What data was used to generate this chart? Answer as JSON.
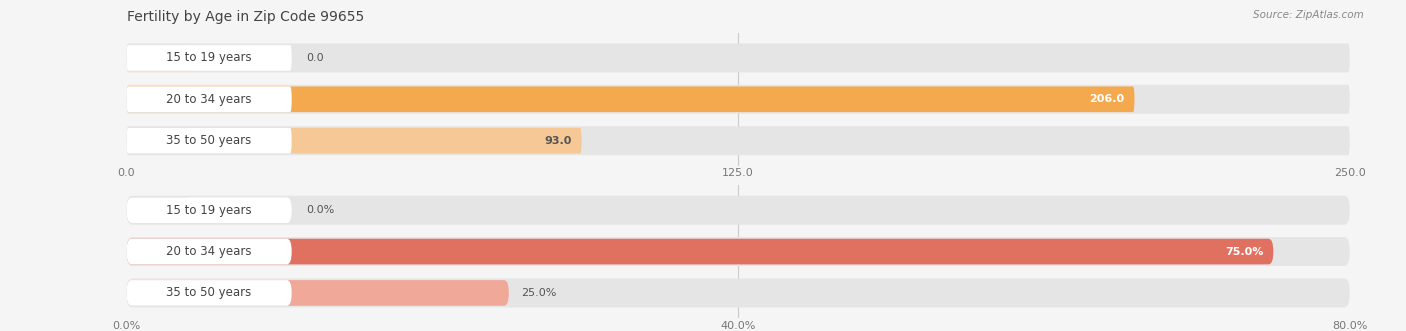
{
  "title": "Fertility by Age in Zip Code 99655",
  "source": "Source: ZipAtlas.com",
  "top_chart": {
    "categories": [
      "15 to 19 years",
      "20 to 34 years",
      "35 to 50 years"
    ],
    "values": [
      0.0,
      206.0,
      93.0
    ],
    "xlim": [
      0,
      250.0
    ],
    "xticks": [
      0.0,
      125.0,
      250.0
    ],
    "xtick_labels": [
      "0.0",
      "125.0",
      "250.0"
    ],
    "bar_color": [
      "#F5C896",
      "#F5A94E",
      "#F5C896"
    ],
    "value_color": [
      "#555555",
      "#ffffff",
      "#555555"
    ]
  },
  "bottom_chart": {
    "categories": [
      "15 to 19 years",
      "20 to 34 years",
      "35 to 50 years"
    ],
    "values": [
      0.0,
      75.0,
      25.0
    ],
    "xlim": [
      0,
      80.0
    ],
    "xticks": [
      0.0,
      40.0,
      80.0
    ],
    "xtick_labels": [
      "0.0%",
      "40.0%",
      "80.0%"
    ],
    "bar_color": [
      "#F0A898",
      "#E07060",
      "#F0A898"
    ],
    "value_color": [
      "#555555",
      "#ffffff",
      "#555555"
    ]
  },
  "fig_bg": "#f5f5f5",
  "bar_bg": "#e5e5e5",
  "bar_row_bg": "#ebebeb",
  "label_bg": "#ffffff",
  "label_fontsize": 8.5,
  "value_fontsize": 8.0,
  "tick_fontsize": 8.0,
  "title_fontsize": 10,
  "source_fontsize": 7.5,
  "title_color": "#444444",
  "source_color": "#888888",
  "tick_color": "#777777"
}
